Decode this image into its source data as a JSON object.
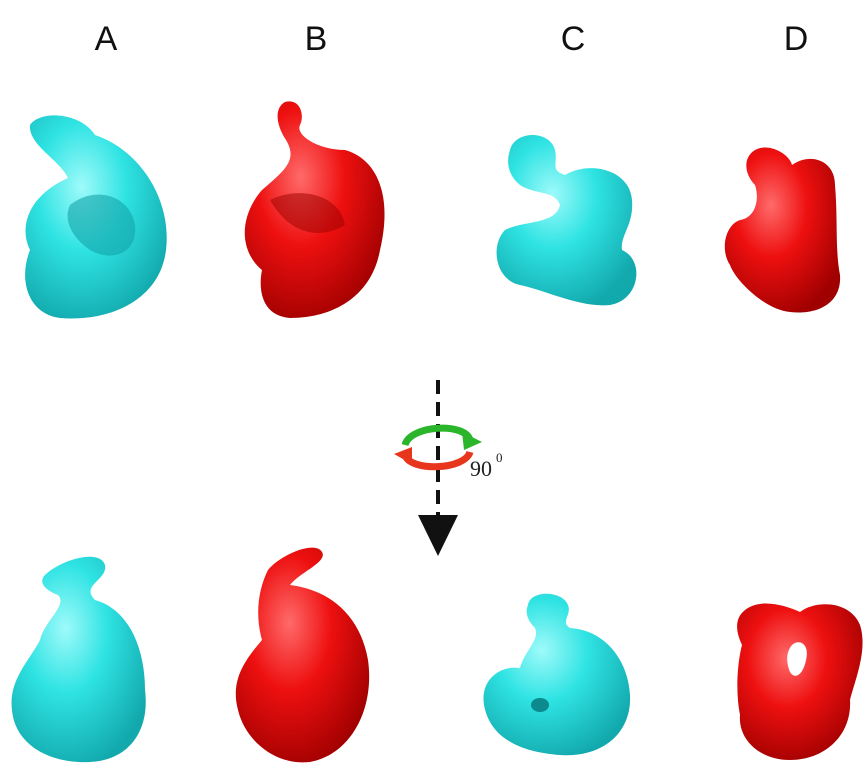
{
  "panels": [
    {
      "label": "A"
    },
    {
      "label": "B"
    },
    {
      "label": "C"
    },
    {
      "label": "D"
    }
  ],
  "rotation": {
    "angle": "90",
    "degree_mark": "0"
  }
}
